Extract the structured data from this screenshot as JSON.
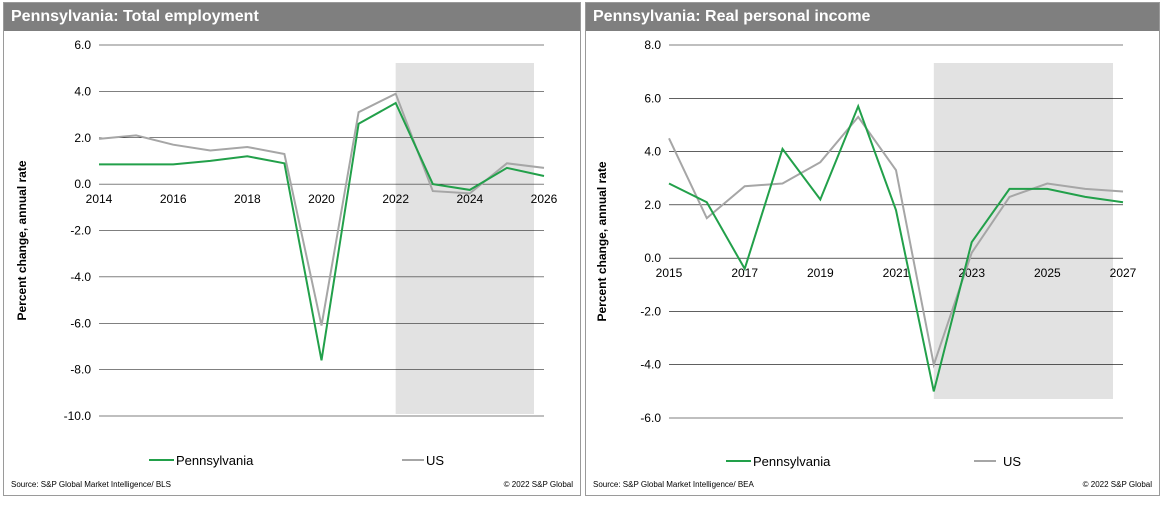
{
  "colors": {
    "pennsylvania": "#22a04a",
    "us": "#a6a6a6",
    "forecast_shade": "#e2e2e2",
    "header_bg": "#7f7f7f",
    "gridline": "#000000"
  },
  "chart_data": [
    {
      "type": "line",
      "title": "Pennsylvania: Total employment",
      "ylabel": "Percent change, annual rate",
      "xlabel": "",
      "x": [
        2014,
        2015,
        2016,
        2017,
        2018,
        2019,
        2020,
        2021,
        2022,
        2023,
        2024,
        2025,
        2026
      ],
      "xlim": [
        2014,
        2026
      ],
      "ylim": [
        -10,
        6
      ],
      "yticks": [
        6,
        4,
        2,
        0,
        -2,
        -4,
        -6,
        -8,
        -10
      ],
      "ytick_labels": [
        "6.0",
        "4.0",
        "2.0",
        "0.0",
        "-2.0",
        "-4.0",
        "-6.0",
        "-8.0",
        "-10.0"
      ],
      "xticks": [
        2014,
        2016,
        2018,
        2020,
        2022,
        2024,
        2026
      ],
      "xtick_labels": [
        "2014",
        "2016",
        "2018",
        "2020",
        "2022",
        "2024",
        "2026"
      ],
      "grid": true,
      "legend_position": "bottom",
      "forecast_start": 2022,
      "series": [
        {
          "name": "Pennsylvania",
          "values": [
            0.85,
            0.85,
            0.85,
            1.0,
            1.2,
            0.9,
            -7.6,
            2.6,
            3.5,
            0.0,
            -0.25,
            0.7,
            0.35
          ]
        },
        {
          "name": "US",
          "values": [
            1.95,
            2.1,
            1.7,
            1.45,
            1.6,
            1.3,
            -6.1,
            3.1,
            3.9,
            -0.3,
            -0.4,
            0.9,
            0.7
          ]
        }
      ],
      "source": "Source: S&P Global Market Intelligence/ BLS",
      "copyright": "© 2022 S&P Global"
    },
    {
      "type": "line",
      "title": "Pennsylvania: Real personal income",
      "ylabel": "Percent change, annual rate",
      "xlabel": "",
      "x": [
        2015,
        2016,
        2017,
        2018,
        2019,
        2020,
        2021,
        2022,
        2023,
        2024,
        2025,
        2026,
        2027
      ],
      "xlim": [
        2015,
        2027
      ],
      "ylim": [
        -6,
        8
      ],
      "yticks": [
        8,
        6,
        4,
        2,
        0,
        -2,
        -4,
        -6
      ],
      "ytick_labels": [
        "8.0",
        "6.0",
        "4.0",
        "2.0",
        "0.0",
        "-2.0",
        "-4.0",
        "-6.0"
      ],
      "xticks": [
        2015,
        2017,
        2019,
        2021,
        2023,
        2025,
        2027
      ],
      "xtick_labels": [
        "2015",
        "2017",
        "2019",
        "2021",
        "2023",
        "2025",
        "2027"
      ],
      "grid": true,
      "legend_position": "bottom",
      "forecast_start": 2022,
      "series": [
        {
          "name": "Pennsylvania",
          "values": [
            2.8,
            2.1,
            -0.4,
            4.1,
            2.2,
            5.7,
            1.8,
            -5.0,
            0.6,
            2.6,
            2.6,
            2.3,
            2.1
          ]
        },
        {
          "name": "US",
          "values": [
            4.5,
            1.5,
            2.7,
            2.8,
            3.6,
            5.3,
            3.3,
            -4.0,
            0.2,
            2.3,
            2.8,
            2.6,
            2.5
          ]
        }
      ],
      "source": "Source: S&P Global Market Intelligence/ BEA",
      "copyright": "© 2022 S&P Global"
    }
  ]
}
